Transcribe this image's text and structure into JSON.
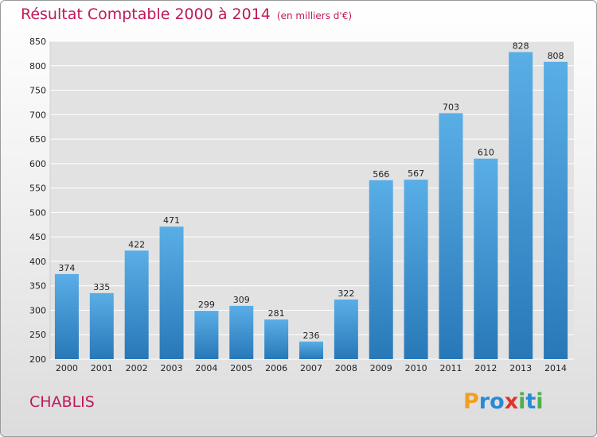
{
  "chart_data": {
    "type": "bar",
    "title": "Résultat Comptable 2000 à 2014",
    "subtitle": "(en milliers d'€)",
    "categories": [
      "2000",
      "2001",
      "2002",
      "2003",
      "2004",
      "2005",
      "2006",
      "2007",
      "2008",
      "2009",
      "2010",
      "2011",
      "2012",
      "2013",
      "2014"
    ],
    "values": [
      374,
      335,
      422,
      471,
      299,
      309,
      281,
      236,
      322,
      566,
      567,
      703,
      610,
      828,
      808
    ],
    "ylim": [
      200,
      850
    ],
    "yticks": [
      200,
      250,
      300,
      350,
      400,
      450,
      500,
      550,
      600,
      650,
      700,
      750,
      800,
      850
    ],
    "grid": true,
    "bar_color_top": "#5aaee6",
    "bar_color_bottom": "#2878b8"
  },
  "footer": {
    "place": "CHABLIS",
    "logo": {
      "text": "Proxiti",
      "letters": [
        {
          "ch": "P",
          "color": "#f0a020"
        },
        {
          "ch": "r",
          "color": "#2a8ad8"
        },
        {
          "ch": "o",
          "color": "#2a8ad8"
        },
        {
          "ch": "x",
          "color": "#e0342a"
        },
        {
          "ch": "i",
          "color": "#4cb04c"
        },
        {
          "ch": "t",
          "color": "#2a8ad8"
        },
        {
          "ch": "i",
          "color": "#4cb04c"
        }
      ]
    }
  },
  "colors": {
    "title": "#c0185a",
    "grid": "#ffffff"
  }
}
